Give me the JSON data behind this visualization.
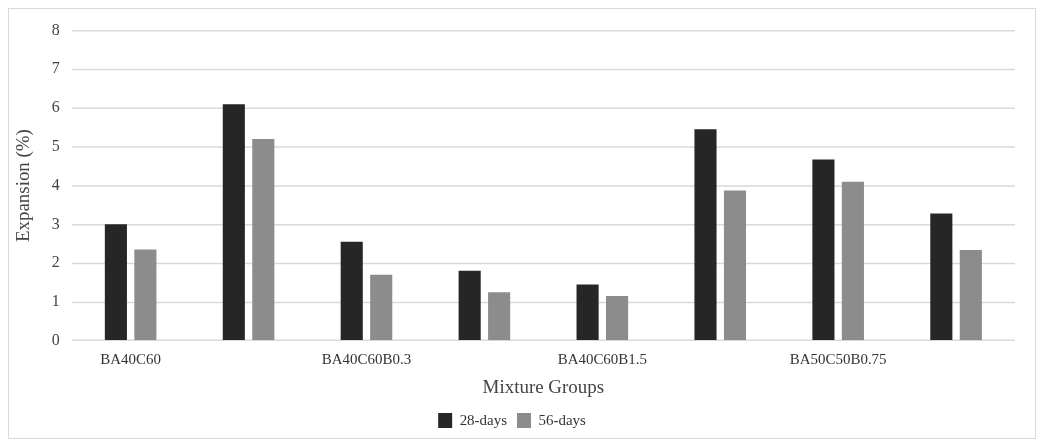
{
  "chart_data": {
    "type": "bar",
    "xlabel": "Mixture Groups",
    "ylabel": "Expansion (%)",
    "categories": [
      "BA40C60",
      null,
      "BA40C60B0.3",
      null,
      "BA40C60B1.5",
      null,
      "BA50C50B0.75",
      null
    ],
    "series": [
      {
        "name": "28-days",
        "color": "#262626",
        "values": [
          3.0,
          6.1,
          2.55,
          1.8,
          1.45,
          5.45,
          4.67,
          3.28
        ]
      },
      {
        "name": "56-days",
        "color": "#8c8c8c",
        "values": [
          2.35,
          5.2,
          1.7,
          1.25,
          1.15,
          3.87,
          4.1,
          2.34
        ]
      }
    ],
    "ylim": [
      0,
      8
    ],
    "yticks": [
      0,
      1,
      2,
      3,
      4,
      5,
      6,
      7,
      8
    ],
    "grid": "y",
    "legend": "bottom"
  }
}
